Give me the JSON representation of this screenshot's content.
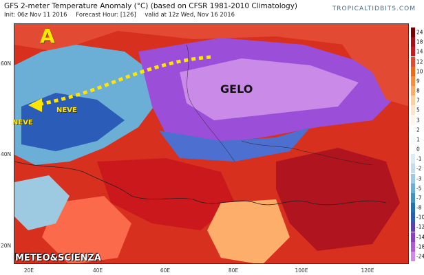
{
  "header": {
    "title": "GFS 2-meter Temperature Anomaly (°C) (based on CFSR 1981-2010 Climatology)",
    "init": "Init: 06z Nov 11 2016",
    "forecast_hour": "Forecast Hour: [126]",
    "valid": "valid at 12z Wed, Nov 16 2016",
    "brand": "TROPICALTIDBITS.COM"
  },
  "axes": {
    "lat_labels": [
      "60N",
      "40N",
      "20N"
    ],
    "lon_labels": [
      "20E",
      "40E",
      "60E",
      "80E",
      "100E",
      "120E"
    ]
  },
  "scale": {
    "labels": [
      "24",
      "18",
      "14",
      "12",
      "10",
      "9",
      "8",
      "7",
      "5",
      "3",
      "2",
      "1",
      "0",
      "-1",
      "-2",
      "-3",
      "-5",
      "-7",
      "-8",
      "-10",
      "-12",
      "-14",
      "-18",
      "-24"
    ],
    "colors": [
      "#7a0000",
      "#a50f15",
      "#cb181d",
      "#e34a33",
      "#f16913",
      "#fd8d3c",
      "#fdae6b",
      "#fdd0a2",
      "#fee6ce",
      "#fff5eb",
      "#ffffff",
      "#f7fbff",
      "#ffffff",
      "#deebf7",
      "#c6dbef",
      "#9ecae1",
      "#6baed6",
      "#4292c6",
      "#2171b5",
      "#2b5cb8",
      "#5a3fb5",
      "#8a3fc8",
      "#b05ad8",
      "#d08ae8"
    ]
  },
  "annotations": {
    "high": "A",
    "frost": "GELO",
    "snow1": "NEVE",
    "snow2": "NEVE",
    "credit": "METEO&SCIENZA"
  },
  "map": {
    "main_colors": {
      "warm": "#d7301f",
      "warm_dark": "#b0151f",
      "cool": "#6baed6",
      "cold_blue": "#2b5cb8",
      "frost_purple": "#9b4fd8",
      "frost_light": "#c98ae8",
      "arrow_yellow": "#ffe600"
    }
  }
}
